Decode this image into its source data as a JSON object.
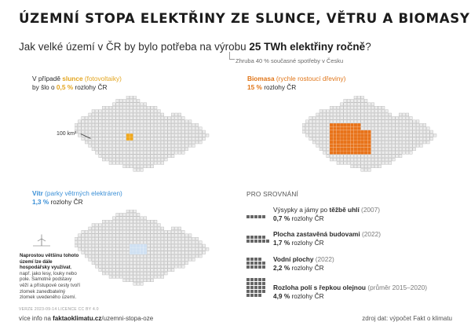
{
  "title": "ÚZEMNÍ STOPA ELEKTŘINY ZE SLUNCE, VĚTRU A BIOMASY",
  "subtitle": {
    "prefix": "Jak velké území v ČR by bylo potřeba na výrobu ",
    "emphasis": "25 TWh elektřiny ročně",
    "suffix": "?"
  },
  "note": "Zhruba 40 % současné spotřeby v Česku",
  "panels": {
    "solar": {
      "line1_prefix": "V případě ",
      "line1_highlight": "slunce",
      "line1_detail": " (fotovoltaiky)",
      "line2_prefix": "by šlo o ",
      "line2_value": "0,5 %",
      "line2_suffix": " rozlohy ČR",
      "scale_label": "100 km²",
      "color": "#f0a81e"
    },
    "biomass": {
      "line1_highlight": "Biomasa",
      "line1_detail": " (rychle rostoucí dřeviny)",
      "line2_value": "15 %",
      "line2_suffix": " rozlohy ČR",
      "color": "#e8731a"
    },
    "wind": {
      "line1_highlight": "Vítr",
      "line1_detail": " (parky větrných elektráren)",
      "line2_value": "1,3 %",
      "line2_suffix": " rozlohy ČR",
      "color": "#3a8fd6",
      "note_bold": "Naprostou většinu tohoto území lze dále hospodářsky využívat",
      "note_rest": ", např. jako lesy, louky nebo pole. Samotné podstavy věží a přístupové cesty tvoří zlomek zanedbatelný zlomek uvedeného území."
    }
  },
  "comparison": {
    "heading": "PRO SROVNÁNÍ",
    "items": [
      {
        "label": "Výsypky a jámy po ",
        "label_bold": "těžbě uhlí",
        "extra": " (2007)",
        "value": "0,7 %",
        "suffix": " rozlohy ČR"
      },
      {
        "label": "",
        "label_bold": "Plocha zastavěná budovami",
        "extra": " (2022)",
        "value": "1,7 %",
        "suffix": " rozlohy ČR"
      },
      {
        "label": "",
        "label_bold": "Vodní plochy",
        "extra": " (2022)",
        "value": "2,2 %",
        "suffix": " rozlohy ČR"
      },
      {
        "label": "",
        "label_bold": "Rozloha polí s řepkou olejnou",
        "extra": " (průměr 2015–2020)",
        "value": "4,9 %",
        "suffix": " rozlohy ČR"
      }
    ]
  },
  "footer": {
    "version": "VERZE 2023-09-14   LICENCE CC BY 4.0",
    "more_prefix": "více info na ",
    "more_site": "faktaoklimatu.cz",
    "more_path": "/uzemni-stopa-oze",
    "source": "zdroj dat: výpočet Fakt o klimatu"
  },
  "colors": {
    "grid_fill": "#ececec",
    "grid_stroke": "#b5b5b5",
    "solar": "#f0a81e",
    "biomass": "#e8731a",
    "wind": "#3a8fd6"
  }
}
